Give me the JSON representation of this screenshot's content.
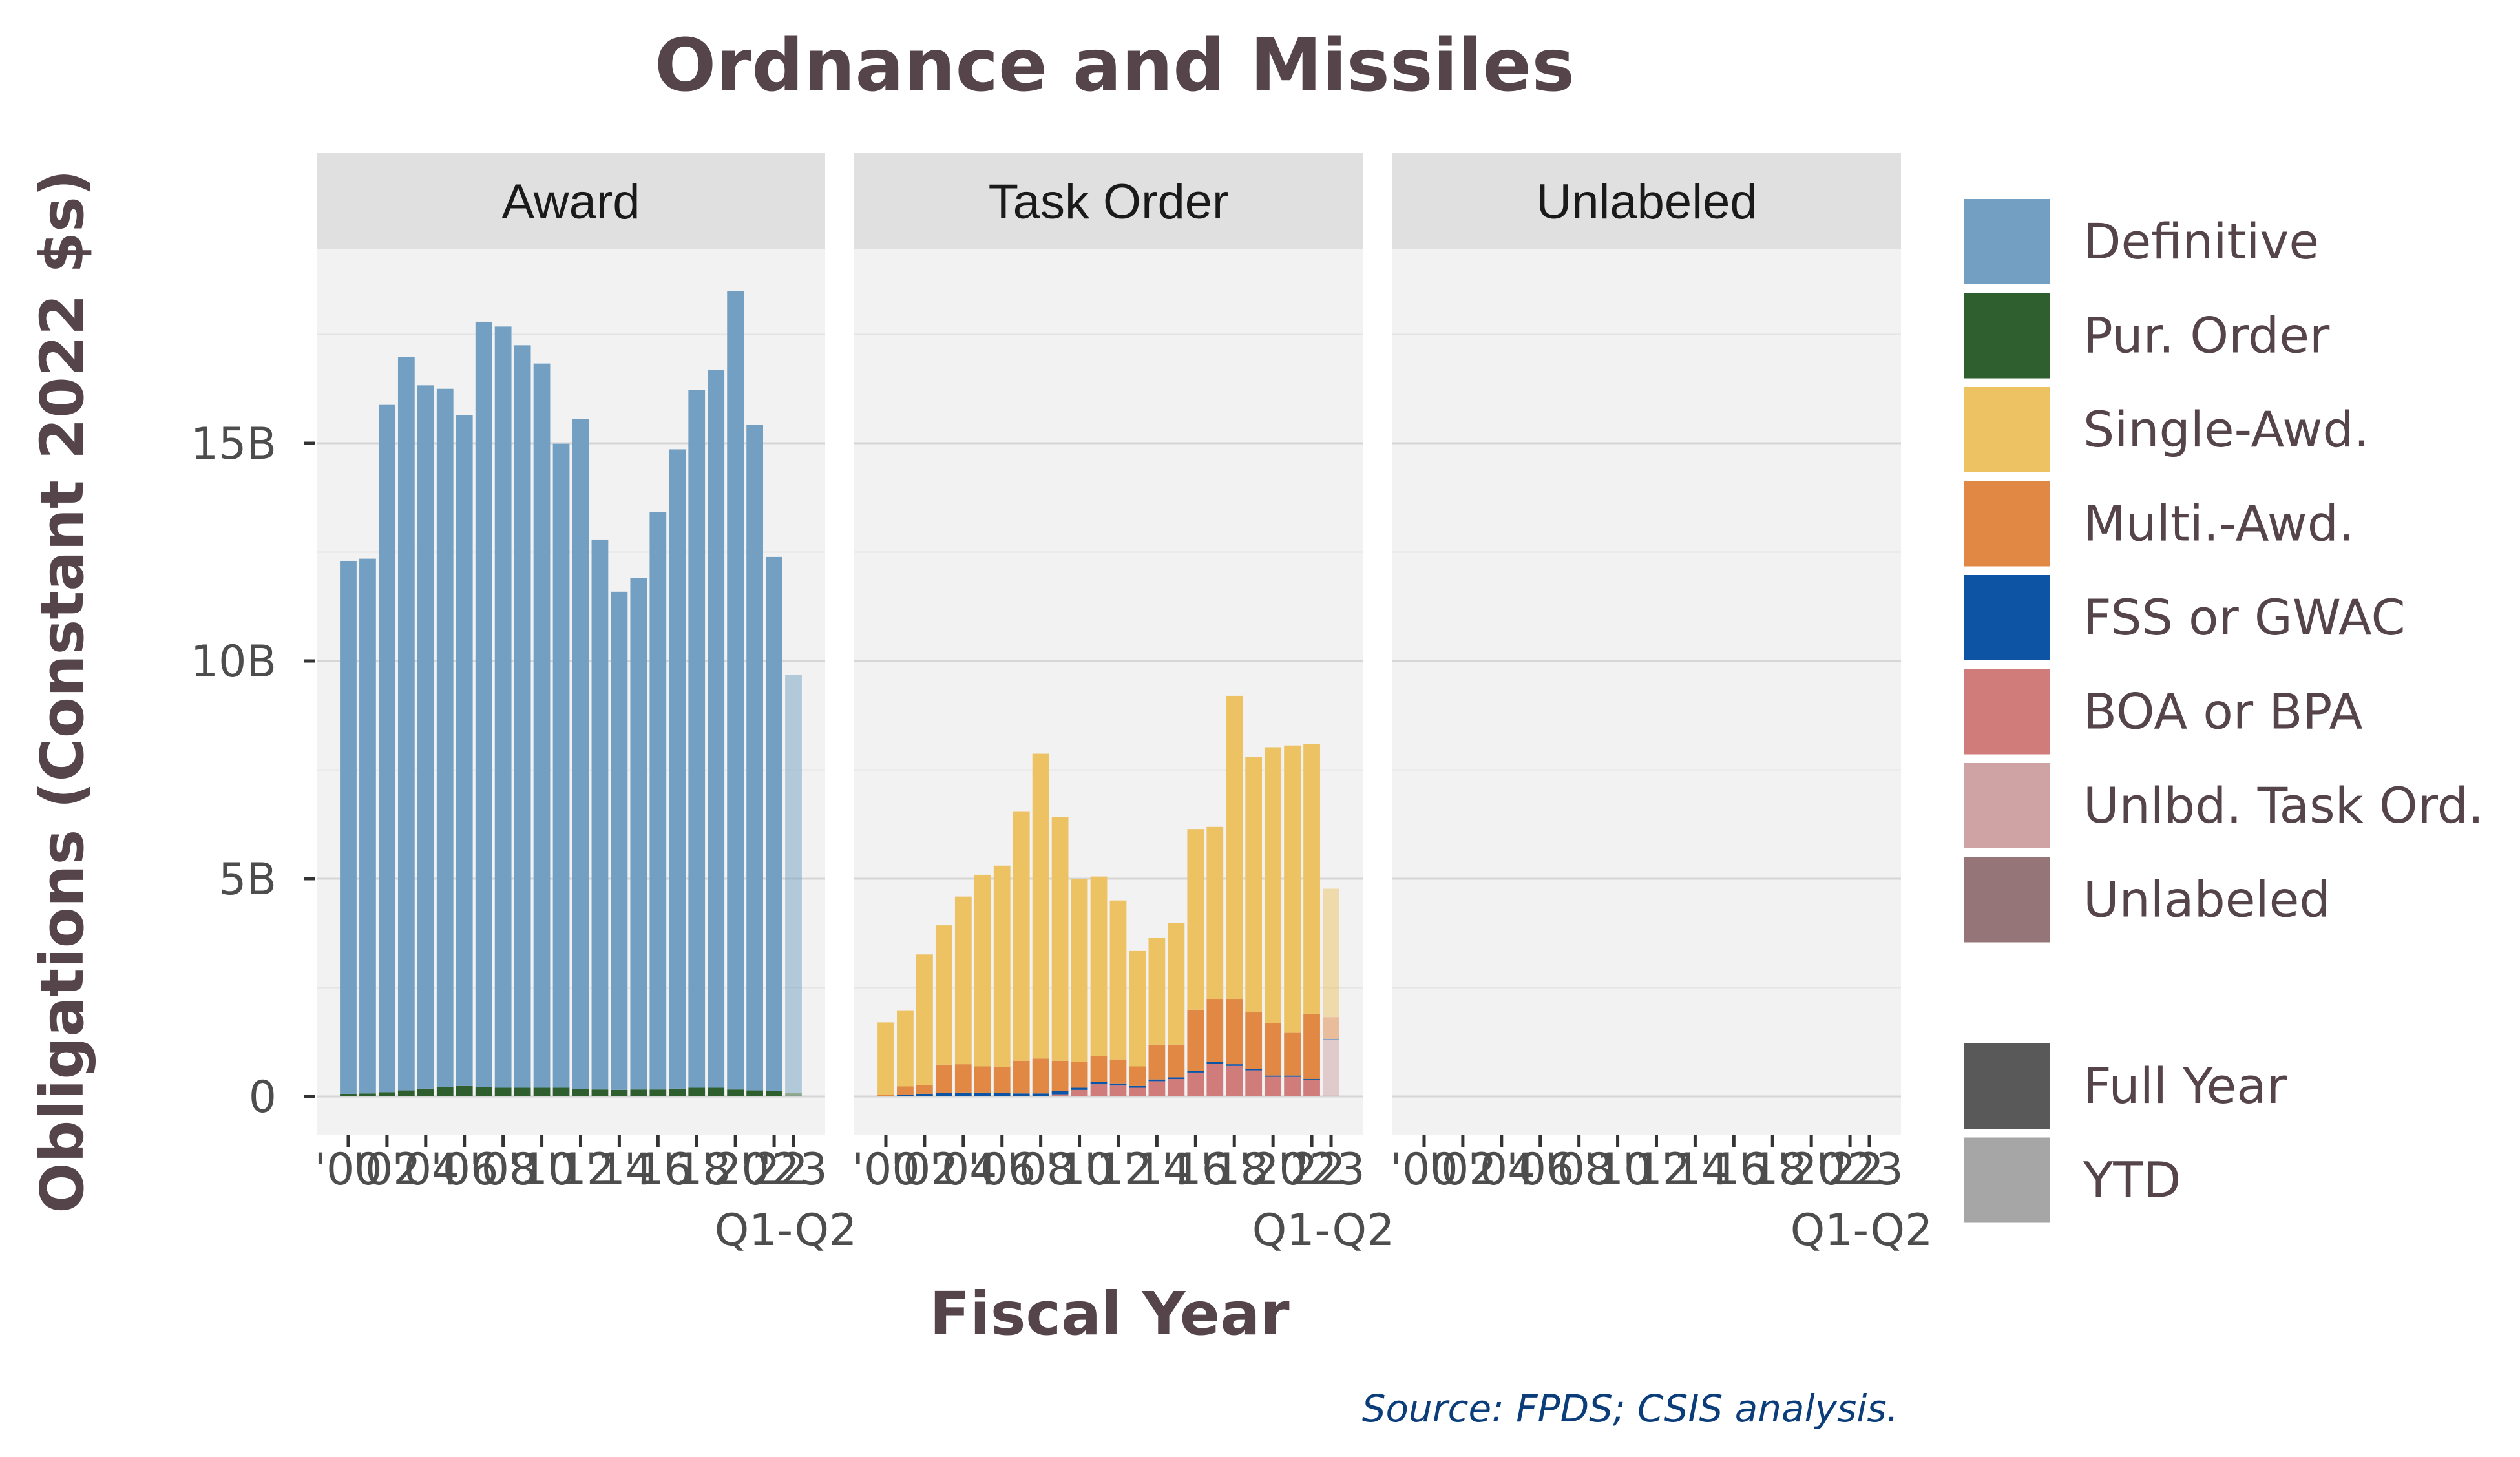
{
  "chart_data": {
    "type": "bar",
    "title": "Ordnance and Missiles",
    "xlabel": "Fiscal Year",
    "ylabel": "Obligations (Constant 2022 $s)",
    "source": "Source: FPDS; CSIS analysis.",
    "ylim": [
      0,
      19000000000
    ],
    "yticks": [
      {
        "value": 0,
        "label": "0"
      },
      {
        "value": 5000000000,
        "label": "5B"
      },
      {
        "value": 10000000000,
        "label": "10B"
      },
      {
        "value": 15000000000,
        "label": "15B"
      }
    ],
    "years": [
      2000,
      2001,
      2002,
      2003,
      2004,
      2005,
      2006,
      2007,
      2008,
      2009,
      2010,
      2011,
      2012,
      2013,
      2014,
      2015,
      2016,
      2017,
      2018,
      2019,
      2020,
      2021,
      2022,
      2023
    ],
    "xtick_labels": [
      {
        "year": 2000,
        "label": "'00"
      },
      {
        "year": 2002,
        "label": "'02"
      },
      {
        "year": 2004,
        "label": "'04"
      },
      {
        "year": 2006,
        "label": "'06"
      },
      {
        "year": 2008,
        "label": "'08"
      },
      {
        "year": 2010,
        "label": "'10"
      },
      {
        "year": 2012,
        "label": "'12"
      },
      {
        "year": 2014,
        "label": "'14"
      },
      {
        "year": 2016,
        "label": "'16"
      },
      {
        "year": 2018,
        "label": "'18"
      },
      {
        "year": 2020,
        "label": "'20"
      },
      {
        "year": 2022,
        "label": "'22"
      },
      {
        "year": 2023,
        "label": "'23"
      }
    ],
    "ytd_label": "Q1-Q2",
    "ytd_year": 2023,
    "categories": [
      "Definitive",
      "Pur. Order",
      "Single-Awd.",
      "Multi.-Awd.",
      "FSS or GWAC",
      "BOA or BPA",
      "Unlbd. Task Ord.",
      "Unlabeled"
    ],
    "colors": {
      "Definitive": "#729fc2",
      "Pur. Order": "#2f5f2f",
      "Single-Awd.": "#ecc263",
      "Multi.-Awd.": "#e08844",
      "FSS or GWAC": "#0e54a4",
      "BOA or BPA": "#d07c7b",
      "Unlbd. Task Ord.": "#cfa2a3",
      "Unlabeled": "#957577",
      "Full Year": "#595959",
      "YTD": "#a6a6a6"
    },
    "panels": [
      {
        "label": "Award",
        "series": [
          {
            "name": "Pur. Order",
            "values": [
              0.06,
              0.07,
              0.1,
              0.14,
              0.18,
              0.22,
              0.24,
              0.22,
              0.2,
              0.2,
              0.2,
              0.2,
              0.17,
              0.16,
              0.15,
              0.16,
              0.16,
              0.18,
              0.2,
              0.2,
              0.16,
              0.14,
              0.12,
              0.08
            ]
          },
          {
            "name": "Definitive",
            "values": [
              12.24,
              12.28,
              15.78,
              16.84,
              16.15,
              16.03,
              15.41,
              17.57,
              17.48,
              17.05,
              16.63,
              14.79,
              15.39,
              12.63,
              11.44,
              11.74,
              13.26,
              14.68,
              16.02,
              16.49,
              18.34,
              15.29,
              12.27,
              9.6
            ]
          }
        ]
      },
      {
        "label": "Task Order",
        "series": [
          {
            "name": "BOA or BPA",
            "values": [
              0.0,
              0.0,
              0.0,
              0.0,
              0.0,
              0.0,
              0.0,
              0.0,
              0.0,
              0.05,
              0.15,
              0.28,
              0.25,
              0.2,
              0.35,
              0.4,
              0.55,
              0.75,
              0.7,
              0.6,
              0.45,
              0.45,
              0.38,
              0.0
            ]
          },
          {
            "name": "Unlbd. Task Ord.",
            "values": [
              0,
              0,
              0,
              0,
              0,
              0,
              0,
              0,
              0,
              0,
              0,
              0,
              0,
              0,
              0,
              0,
              0,
              0,
              0,
              0,
              0,
              0,
              0,
              1.3
            ]
          },
          {
            "name": "FSS or GWAC",
            "values": [
              0.01,
              0.03,
              0.06,
              0.08,
              0.09,
              0.09,
              0.08,
              0.07,
              0.07,
              0.07,
              0.05,
              0.05,
              0.05,
              0.04,
              0.04,
              0.04,
              0.04,
              0.04,
              0.04,
              0.03,
              0.03,
              0.03,
              0.02,
              0.02
            ]
          },
          {
            "name": "Multi.-Awd.",
            "values": [
              0.02,
              0.2,
              0.2,
              0.65,
              0.65,
              0.6,
              0.6,
              0.75,
              0.8,
              0.7,
              0.6,
              0.6,
              0.55,
              0.45,
              0.8,
              0.75,
              1.4,
              1.45,
              1.5,
              1.3,
              1.2,
              0.98,
              1.5,
              0.5
            ]
          },
          {
            "name": "Single-Awd.",
            "values": [
              1.67,
              1.75,
              3.0,
              3.2,
              3.85,
              4.4,
              4.62,
              5.73,
              7.0,
              5.6,
              4.2,
              4.12,
              3.65,
              2.65,
              2.45,
              2.8,
              4.15,
              3.95,
              6.96,
              5.87,
              6.34,
              6.6,
              6.2,
              2.95
            ]
          }
        ]
      },
      {
        "label": "Unlabeled",
        "series": []
      }
    ],
    "legend": [
      {
        "name": "Definitive"
      },
      {
        "name": "Pur. Order"
      },
      {
        "name": "Single-Awd."
      },
      {
        "name": "Multi.-Awd."
      },
      {
        "name": "FSS or GWAC"
      },
      {
        "name": "BOA or BPA"
      },
      {
        "name": "Unlbd. Task Ord."
      },
      {
        "name": "Unlabeled"
      },
      {
        "name": "Full Year"
      },
      {
        "name": "YTD"
      }
    ],
    "units_note": "series values in billions of constant 2022 dollars",
    "panel_background": "#f2f2f2",
    "strip_background": "#e0e0e0",
    "grid": true,
    "legend_position": "right"
  }
}
